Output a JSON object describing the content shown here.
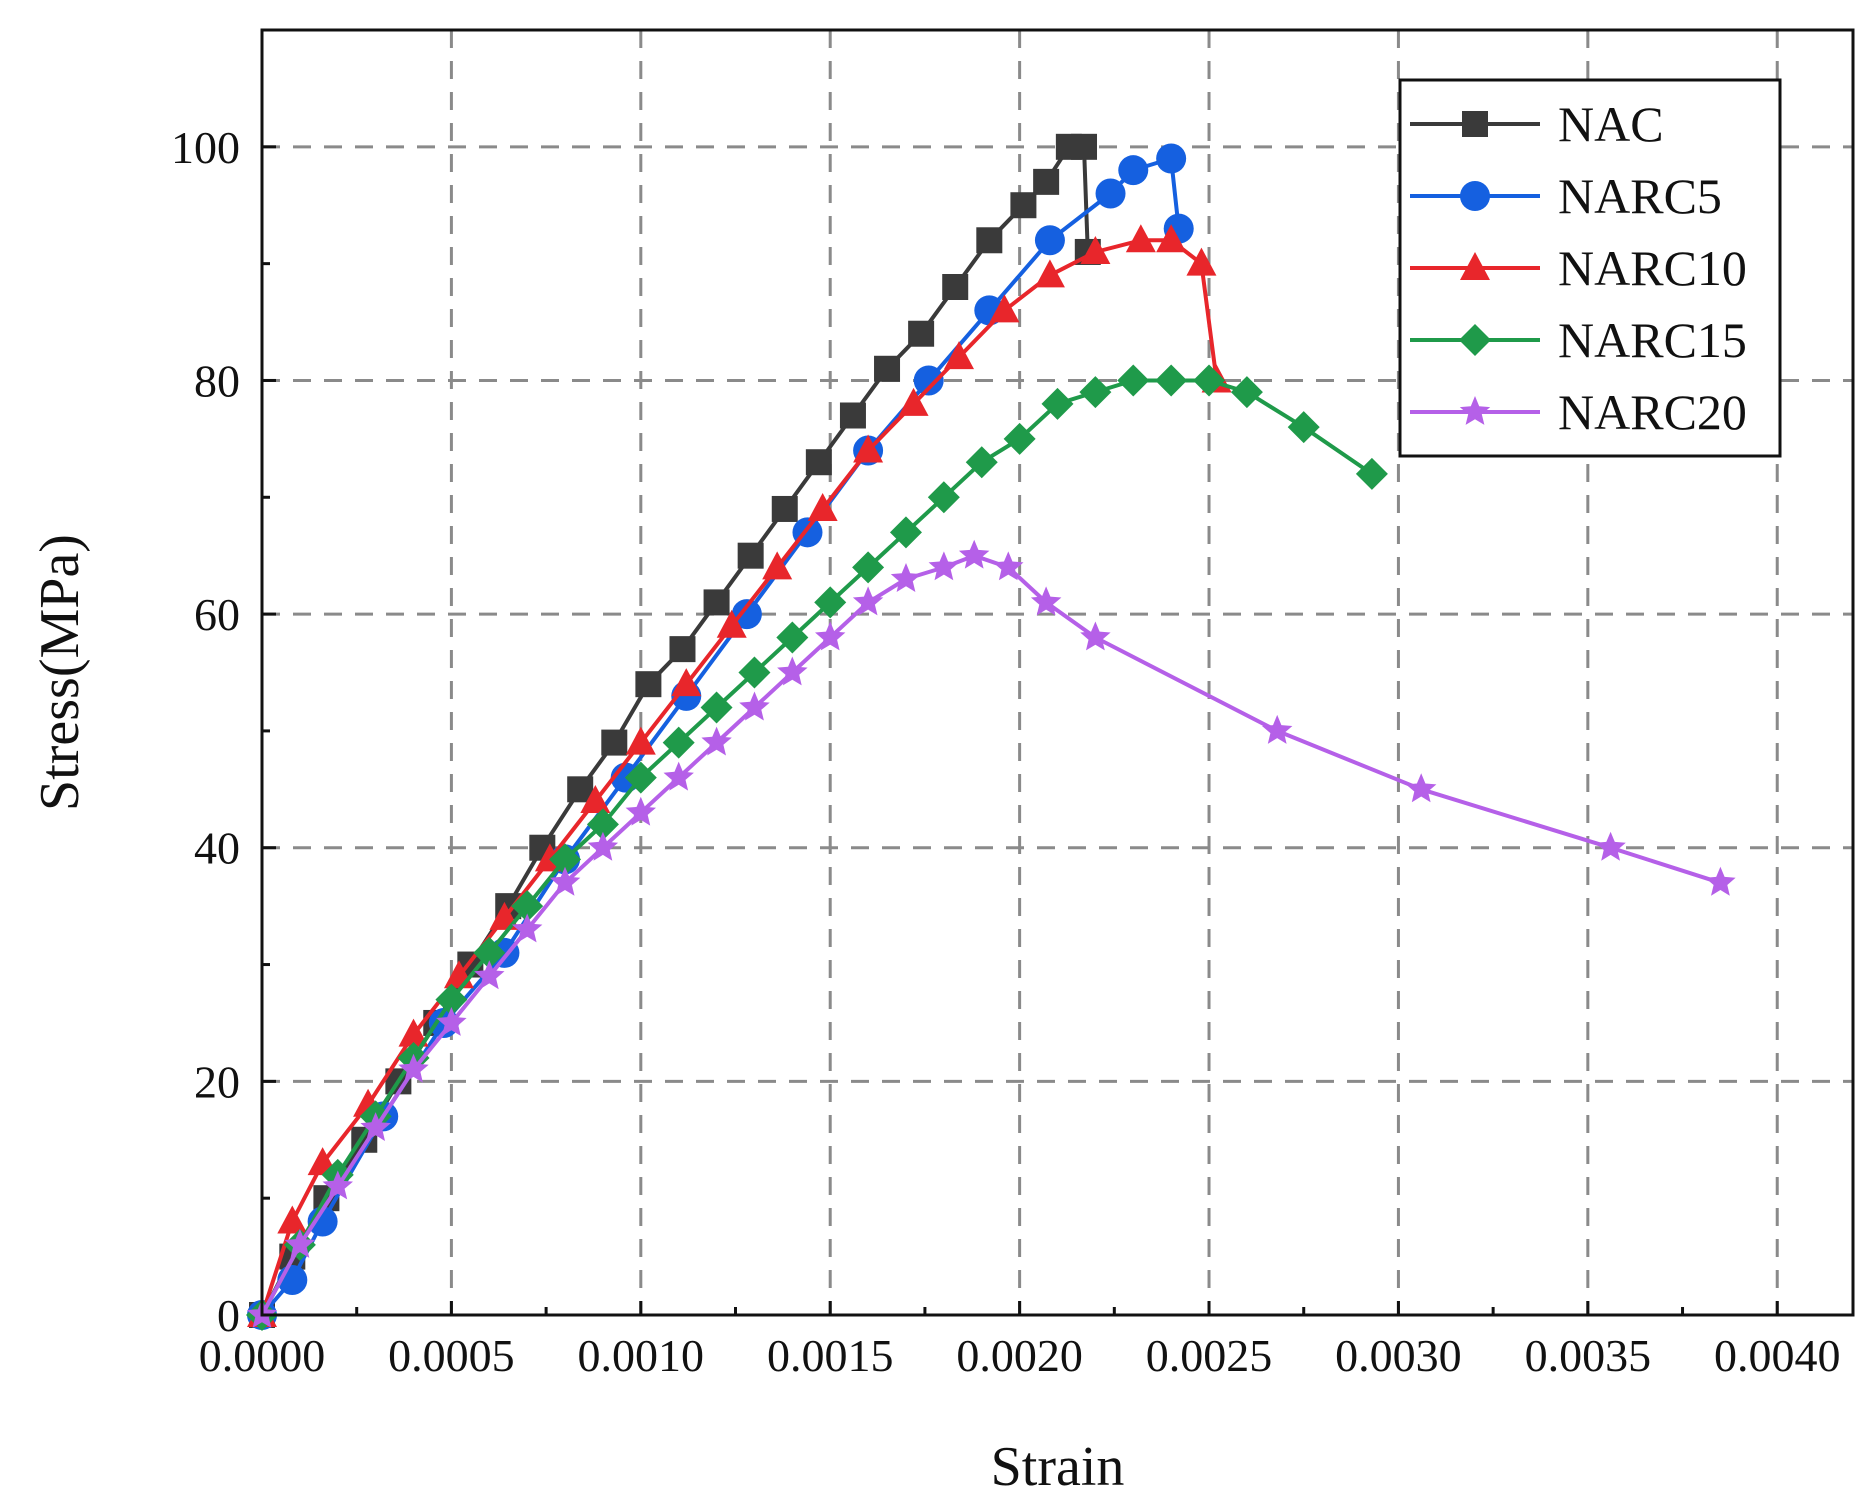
{
  "chart_data": {
    "type": "line",
    "title": "",
    "xlabel": "Strain",
    "ylabel": "Stress(MPa)",
    "xlim": [
      0,
      0.0042
    ],
    "ylim": [
      0,
      110
    ],
    "xticks": [
      0,
      0.0005,
      0.001,
      0.0015,
      0.002,
      0.0025,
      0.003,
      0.0035,
      0.004
    ],
    "xtick_labels": [
      "0.0000",
      "0.0005",
      "0.0010",
      "0.0015",
      "0.0020",
      "0.0025",
      "0.0030",
      "0.0035",
      "0.0040"
    ],
    "yticks": [
      0,
      20,
      40,
      60,
      80,
      100
    ],
    "ytick_labels": [
      "0",
      "20",
      "40",
      "60",
      "80",
      "100"
    ],
    "grid": true,
    "legend_position": "top-right",
    "series": [
      {
        "name": "NAC",
        "color": "#3a3a3a",
        "marker": "square",
        "x": [
          0,
          8e-05,
          0.00017,
          0.00027,
          0.00036,
          0.00046,
          0.00055,
          0.00065,
          0.00074,
          0.00084,
          0.00093,
          0.00102,
          0.00111,
          0.0012,
          0.00129,
          0.00138,
          0.00147,
          0.00156,
          0.00165,
          0.00174,
          0.00183,
          0.00192,
          0.00201,
          0.00207,
          0.00213,
          0.00217,
          0.00218
        ],
        "y": [
          0,
          5,
          10,
          15,
          20,
          25,
          30,
          35,
          40,
          45,
          49,
          54,
          57,
          61,
          65,
          69,
          73,
          77,
          81,
          84,
          88,
          92,
          95,
          97,
          100,
          100,
          91
        ]
      },
      {
        "name": "NARC5",
        "color": "#1560e0",
        "marker": "circle",
        "x": [
          0,
          8e-05,
          0.00016,
          0.00032,
          0.00048,
          0.00064,
          0.0008,
          0.00096,
          0.00112,
          0.00128,
          0.00144,
          0.0016,
          0.00176,
          0.00192,
          0.00208,
          0.00224,
          0.0023,
          0.0024,
          0.00242
        ],
        "y": [
          0,
          3,
          8,
          17,
          25,
          31,
          39,
          46,
          53,
          60,
          67,
          74,
          80,
          86,
          92,
          96,
          98,
          99,
          93
        ]
      },
      {
        "name": "NARC10",
        "color": "#e8262b",
        "marker": "triangle",
        "x": [
          0,
          8e-05,
          0.00016,
          0.00028,
          0.0004,
          0.00052,
          0.00064,
          0.00076,
          0.00088,
          0.001,
          0.00112,
          0.00124,
          0.00136,
          0.00148,
          0.0016,
          0.00172,
          0.00184,
          0.00196,
          0.00208,
          0.0022,
          0.00232,
          0.0024,
          0.00248,
          0.00252
        ],
        "y": [
          0,
          8,
          13,
          18,
          24,
          29,
          34,
          39,
          44,
          49,
          54,
          59,
          64,
          69,
          74,
          78,
          82,
          86,
          89,
          91,
          92,
          92,
          90,
          80
        ]
      },
      {
        "name": "NARC15",
        "color": "#1f9a4a",
        "marker": "diamond",
        "x": [
          0,
          0.0001,
          0.0002,
          0.0003,
          0.0004,
          0.0005,
          0.0006,
          0.0007,
          0.0008,
          0.0009,
          0.001,
          0.0011,
          0.0012,
          0.0013,
          0.0014,
          0.0015,
          0.0016,
          0.0017,
          0.0018,
          0.0019,
          0.002,
          0.0021,
          0.0022,
          0.0023,
          0.0024,
          0.0025,
          0.0026,
          0.00275,
          0.00293
        ],
        "y": [
          0,
          6,
          12,
          17,
          22,
          27,
          31,
          35,
          39,
          42,
          46,
          49,
          52,
          55,
          58,
          61,
          64,
          67,
          70,
          73,
          75,
          78,
          79,
          80,
          80,
          80,
          79,
          76,
          72
        ]
      },
      {
        "name": "NARC20",
        "color": "#b560e8",
        "marker": "star",
        "x": [
          0,
          0.0001,
          0.0002,
          0.0003,
          0.0004,
          0.0005,
          0.0006,
          0.0007,
          0.0008,
          0.0009,
          0.001,
          0.0011,
          0.0012,
          0.0013,
          0.0014,
          0.0015,
          0.0016,
          0.0017,
          0.0018,
          0.00188,
          0.00197,
          0.00207,
          0.0022,
          0.00268,
          0.00306,
          0.00356,
          0.00385
        ],
        "y": [
          0,
          6,
          11,
          16,
          21,
          25,
          29,
          33,
          37,
          40,
          43,
          46,
          49,
          52,
          55,
          58,
          61,
          63,
          64,
          65,
          64,
          61,
          58,
          50,
          45,
          40,
          37
        ]
      }
    ]
  }
}
